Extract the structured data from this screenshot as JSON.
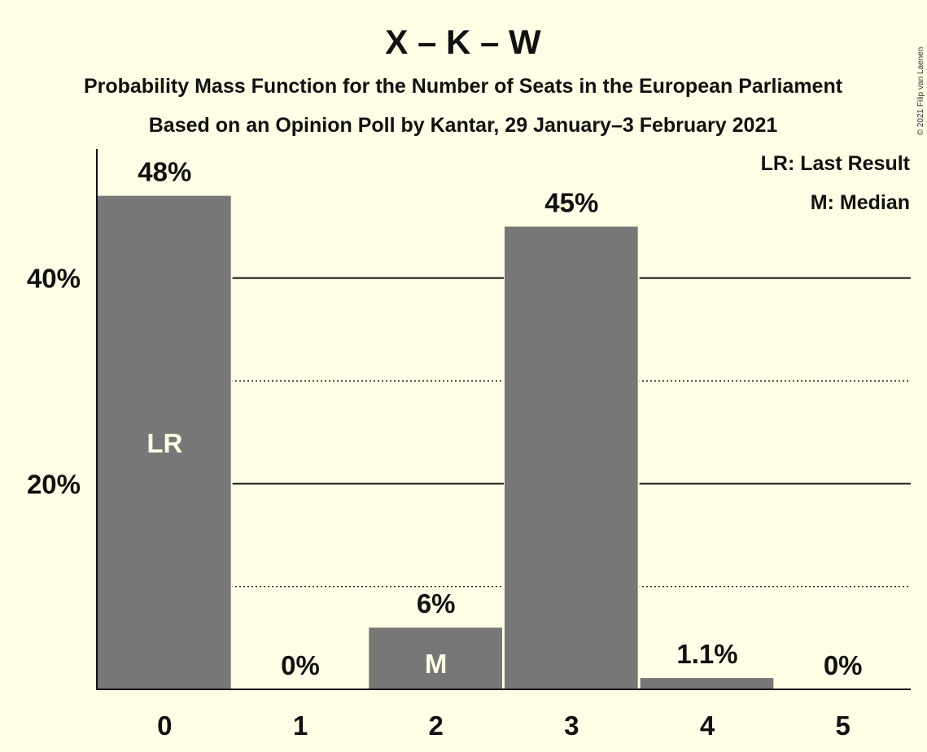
{
  "chart_data": {
    "type": "bar",
    "title": "X – K – W",
    "subtitle_lines": [
      "Probability Mass Function for the Number of Seats in the European Parliament",
      "Based on an Opinion Poll by Kantar, 29 January–3 February 2021"
    ],
    "categories": [
      "0",
      "1",
      "2",
      "3",
      "4",
      "5"
    ],
    "values": [
      48,
      0,
      6,
      45,
      1.1,
      0
    ],
    "value_labels": [
      "48%",
      "0%",
      "6%",
      "45%",
      "1.1%",
      "0%"
    ],
    "bar_markers": [
      "LR",
      "",
      "M",
      "",
      "",
      ""
    ],
    "ylim": [
      0,
      52.4
    ],
    "yticks": [
      {
        "value": 20,
        "label": "20%"
      },
      {
        "value": 40,
        "label": "40%"
      }
    ],
    "grid_dotted": [
      10,
      30
    ],
    "legend": [
      "LR: Last Result",
      "M: Median"
    ],
    "legend_position": "top-right",
    "bar_color": "#777777",
    "background": "#FFFDE6"
  },
  "copyright": "© 2021 Filip van Laenen"
}
